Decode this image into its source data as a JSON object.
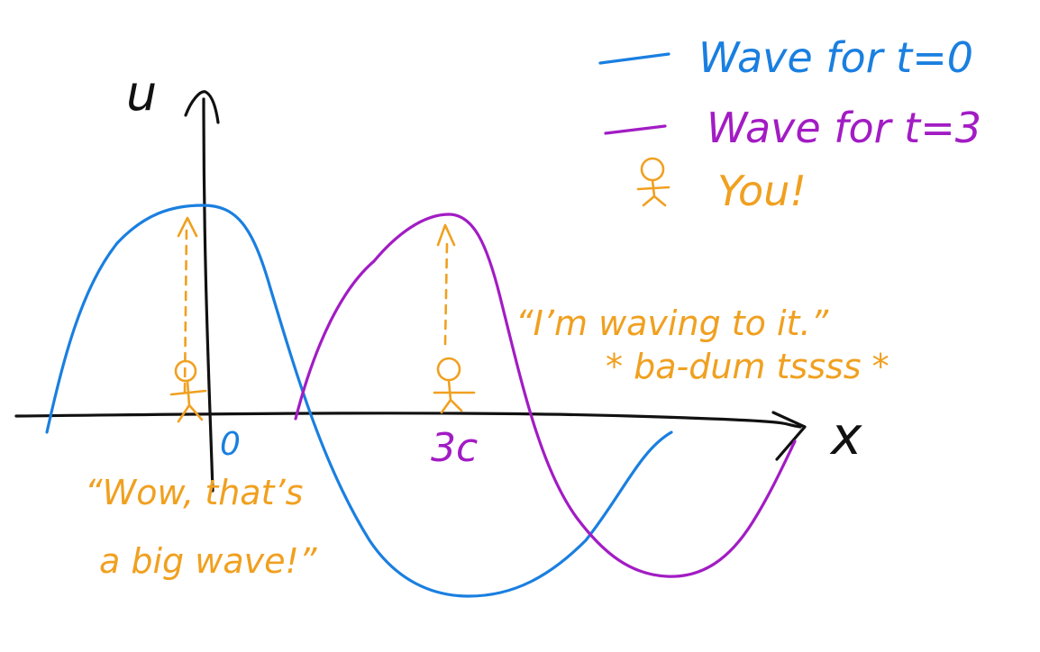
{
  "colors": {
    "axis": "#111111",
    "wave_t0": "#1a7fe0",
    "wave_t3": "#a21cc4",
    "you": "#f0a020"
  },
  "axes": {
    "y_label": "u",
    "x_label": "x",
    "origin_tick": "0",
    "shift_tick": "3c"
  },
  "legend": {
    "wave_t0": "Wave for t=0",
    "wave_t3": "Wave for t=3",
    "you": "You!"
  },
  "quotes": {
    "left_line1": "“Wow, that’s",
    "left_line2": "a big wave!”",
    "right_line1": "“I’m waving to it.”",
    "right_line2": "* ba-dum tssss *"
  },
  "icons": {
    "stick_figure": "person-icon",
    "axis_arrow": "arrowhead-icon"
  }
}
